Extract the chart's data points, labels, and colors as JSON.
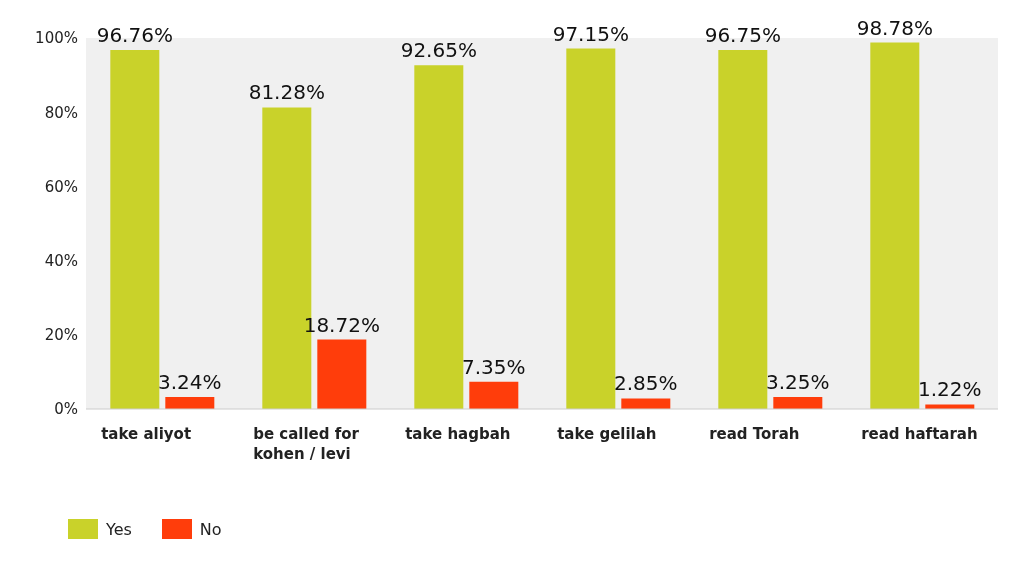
{
  "chart_data": {
    "type": "bar",
    "categories": [
      "take aliyot",
      "be called for kohen / levi",
      "take hagbah",
      "take gelilah",
      "read Torah",
      "read haftarah"
    ],
    "series": [
      {
        "name": "Yes",
        "color": "#c9d22a",
        "values": [
          96.76,
          81.28,
          92.65,
          97.15,
          96.75,
          98.78
        ],
        "value_labels": [
          "96.76%",
          "81.28%",
          "92.65%",
          "97.15%",
          "96.75%",
          "98.78%"
        ]
      },
      {
        "name": "No",
        "color": "#ff3d0b",
        "values": [
          3.24,
          18.72,
          7.35,
          2.85,
          3.25,
          1.22
        ],
        "value_labels": [
          "3.24%",
          "18.72%",
          "7.35%",
          "2.85%",
          "3.25%",
          "1.22%"
        ]
      }
    ],
    "ylim": [
      0,
      100
    ],
    "yticks": [
      {
        "value": 0,
        "label": "0%"
      },
      {
        "value": 20,
        "label": "20%"
      },
      {
        "value": 40,
        "label": "40%"
      },
      {
        "value": 60,
        "label": "60%"
      },
      {
        "value": 80,
        "label": "80%"
      },
      {
        "value": 100,
        "label": "100%"
      }
    ],
    "grid": false,
    "legend": "bottom left"
  }
}
